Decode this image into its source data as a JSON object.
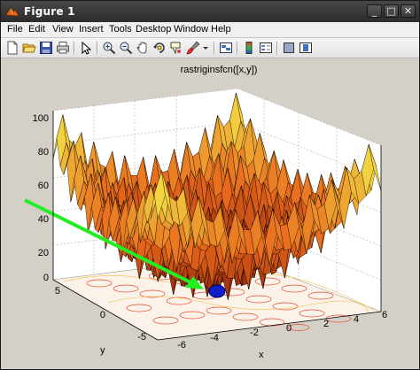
{
  "window": {
    "title": "Figure 1",
    "controls": {
      "minimize": "_",
      "maximize": "□",
      "close": "✕"
    }
  },
  "menu": [
    "File",
    "Edit",
    "View",
    "Insert",
    "Tools",
    "Desktop",
    "Window",
    "Help"
  ],
  "toolbar": {
    "buttons": [
      "new-figure",
      "open-file",
      "save-figure",
      "print-figure",
      "edit-plot",
      "zoom-in",
      "zoom-out",
      "pan",
      "rotate-3d",
      "data-cursor",
      "brush",
      "link-plot",
      "insert-colorbar",
      "insert-legend",
      "hide-plot-tools",
      "show-plot-tools"
    ]
  },
  "axes": {
    "title": "rastriginsfcn([x,y])",
    "xlabel": "x",
    "ylabel": "y",
    "z_ticks": [
      "100",
      "80",
      "60",
      "40",
      "20",
      "0"
    ],
    "x_ticks": [
      "-6",
      "-4",
      "-2",
      "0",
      "2",
      "4",
      "6"
    ],
    "y_ticks": [
      "5",
      "0",
      "-5"
    ]
  },
  "colors": {
    "surface_high": "#f5f04a",
    "surface_mid": "#e8661c",
    "surface_low": "#6a0a00",
    "arrow": "#22ee22",
    "minimum_marker": "#1020c8"
  }
}
